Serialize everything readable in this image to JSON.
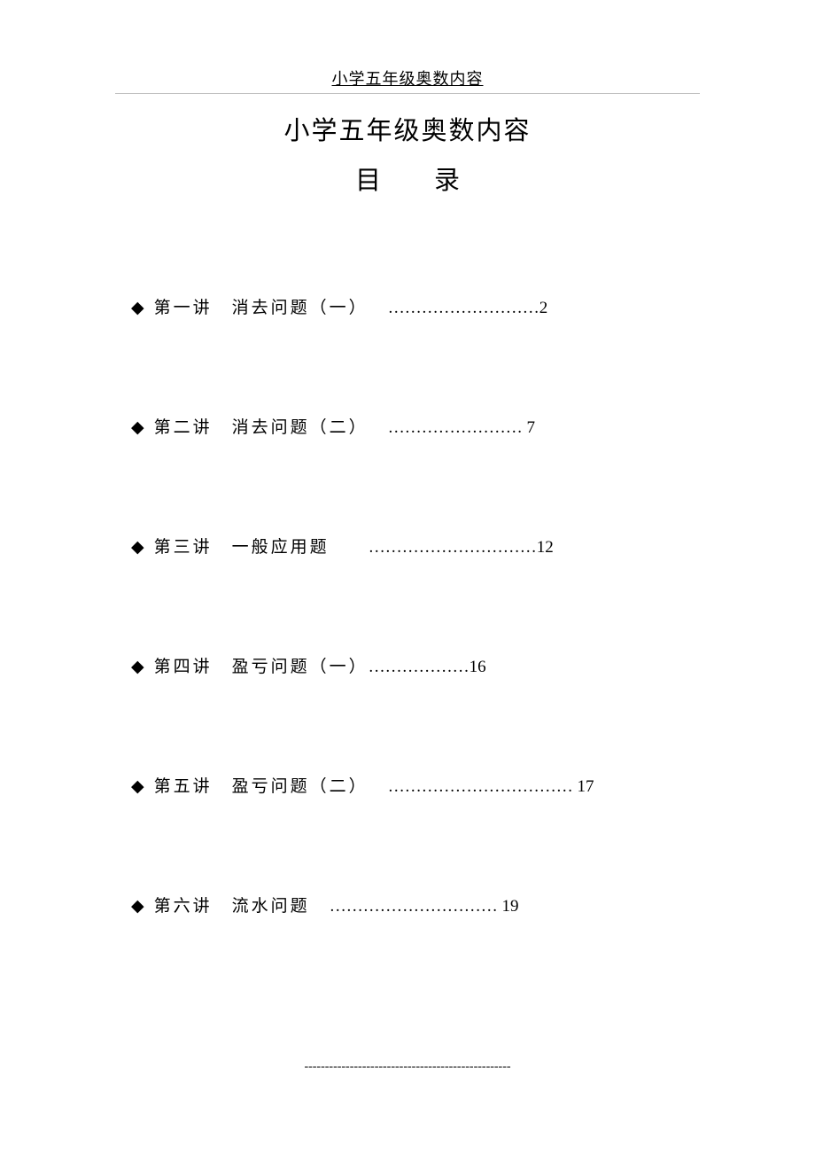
{
  "header": "小学五年级奥数内容",
  "title": "小学五年级奥数内容",
  "subtitle_mu": "目",
  "subtitle_lu": "录",
  "diamond": "◆",
  "toc": [
    {
      "num": "第一讲",
      "title": "消去问题（一）",
      "dots": "………………………",
      "page": "2",
      "spacing1": "　",
      "spacing2": "　"
    },
    {
      "num": "第二讲",
      "title": "消去问题（二）",
      "dots": "……………………",
      "page": " 7",
      "spacing1": "　",
      "spacing2": "　"
    },
    {
      "num": "第三讲",
      "title": "一般应用题",
      "dots": "…………………………",
      "page": "12",
      "spacing1": "　",
      "spacing2": "　　"
    },
    {
      "num": "第四讲",
      "title": "盈亏问题（一）",
      "dots": "………………",
      "page": "16",
      "spacing1": "　",
      "spacing2": ""
    },
    {
      "num": "第五讲",
      "title": "盈亏问题（二）",
      "dots": "……………………………",
      "page": " 17",
      "spacing1": "　",
      "spacing2": "　"
    },
    {
      "num": "第六讲",
      "title": "流水问题",
      "dots": "…………………………",
      "page": " 19",
      "spacing1": "　",
      "spacing2": "　"
    }
  ],
  "footer_dashes": "--------------------------------------------------"
}
